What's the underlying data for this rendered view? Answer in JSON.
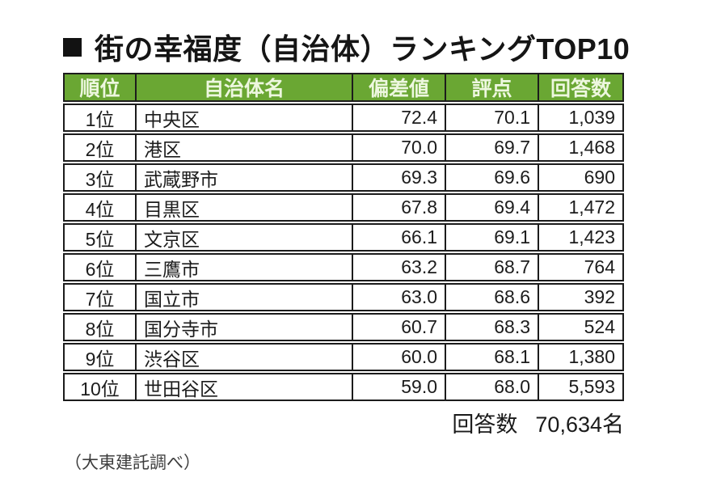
{
  "title": {
    "bullet": "■",
    "text": "街の幸福度（自治体）ランキングTOP10"
  },
  "table": {
    "columns": [
      {
        "key": "rank",
        "label": "順位"
      },
      {
        "key": "name",
        "label": "自治体名"
      },
      {
        "key": "deviation",
        "label": "偏差値"
      },
      {
        "key": "score",
        "label": "評点"
      },
      {
        "key": "responses",
        "label": "回答数"
      }
    ],
    "rows": [
      {
        "rank": "1位",
        "name": "中央区",
        "deviation": "72.4",
        "score": "70.1",
        "responses": "1,039"
      },
      {
        "rank": "2位",
        "name": "港区",
        "deviation": "70.0",
        "score": "69.7",
        "responses": "1,468"
      },
      {
        "rank": "3位",
        "name": "武蔵野市",
        "deviation": "69.3",
        "score": "69.6",
        "responses": "690"
      },
      {
        "rank": "4位",
        "name": "目黒区",
        "deviation": "67.8",
        "score": "69.4",
        "responses": "1,472"
      },
      {
        "rank": "5位",
        "name": "文京区",
        "deviation": "66.1",
        "score": "69.1",
        "responses": "1,423"
      },
      {
        "rank": "6位",
        "name": "三鷹市",
        "deviation": "63.2",
        "score": "68.7",
        "responses": "764"
      },
      {
        "rank": "7位",
        "name": "国立市",
        "deviation": "63.0",
        "score": "68.6",
        "responses": "392"
      },
      {
        "rank": "8位",
        "name": "国分寺市",
        "deviation": "60.7",
        "score": "68.3",
        "responses": "524"
      },
      {
        "rank": "9位",
        "name": "渋谷区",
        "deviation": "60.0",
        "score": "68.1",
        "responses": "1,380"
      },
      {
        "rank": "10位",
        "name": "世田谷区",
        "deviation": "59.0",
        "score": "68.0",
        "responses": "5,593"
      }
    ]
  },
  "footer": {
    "label": "回答数",
    "value": "70,634名"
  },
  "source_note": "（大東建託調べ）",
  "colors": {
    "header_green": "#6aa733",
    "header_text": "#edf7df",
    "border": "#1c1c1c",
    "title_text": "#151515"
  },
  "chart_data": {
    "type": "table",
    "title": "街の幸福度（自治体）ランキングTOP10",
    "columns": [
      "順位",
      "自治体名",
      "偏差値",
      "評点",
      "回答数"
    ],
    "rows": [
      [
        "1位",
        "中央区",
        72.4,
        70.1,
        1039
      ],
      [
        "2位",
        "港区",
        70.0,
        69.7,
        1468
      ],
      [
        "3位",
        "武蔵野市",
        69.3,
        69.6,
        690
      ],
      [
        "4位",
        "目黒区",
        67.8,
        69.4,
        1472
      ],
      [
        "5位",
        "文京区",
        66.1,
        69.1,
        1423
      ],
      [
        "6位",
        "三鷹市",
        63.2,
        68.7,
        764
      ],
      [
        "7位",
        "国立市",
        63.0,
        68.6,
        392
      ],
      [
        "8位",
        "国分寺市",
        60.7,
        68.3,
        524
      ],
      [
        "9位",
        "渋谷区",
        60.0,
        68.1,
        1380
      ],
      [
        "10位",
        "世田谷区",
        59.0,
        68.0,
        5593
      ]
    ],
    "total_responses": "回答数 70,634名",
    "source": "大東建託調べ"
  }
}
